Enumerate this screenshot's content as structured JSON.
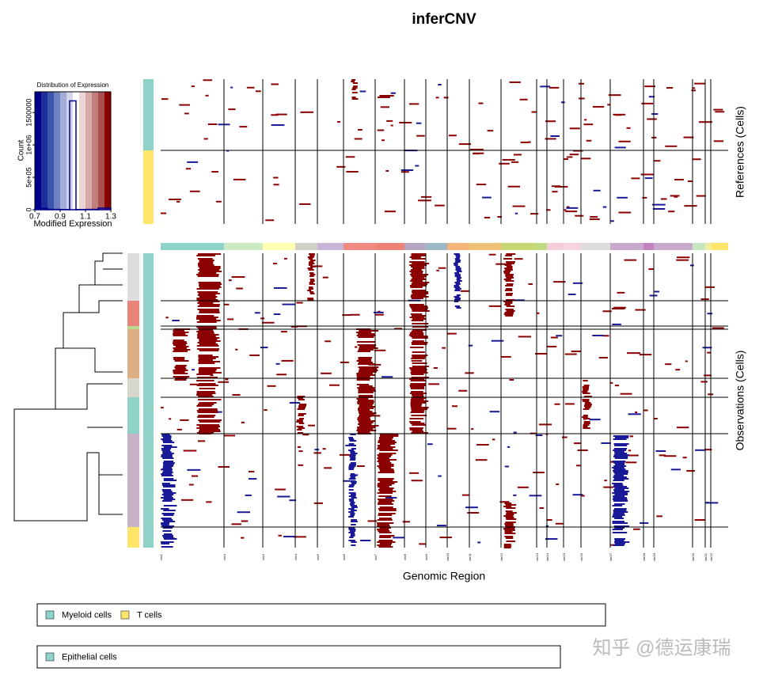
{
  "chart_data": {
    "type": "histogram",
    "title": "Distribution of Expression",
    "x_label": "Modified Expression",
    "y_label": "Count",
    "bins": [
      0.7,
      0.8,
      0.9,
      0.975,
      1.025,
      1.1,
      1.2,
      1.3
    ],
    "values": [
      20000,
      5000,
      3000,
      1680000,
      3000,
      5000,
      25000
    ],
    "color": "#00008b",
    "xlim": [
      0.7,
      1.3
    ],
    "xticks": [
      0.7,
      0.9,
      1.1,
      1.3
    ],
    "ylim": [
      0,
      1820000
    ],
    "yticks": [
      0,
      {
        "value": 500000,
        "label": "5e+05"
      },
      {
        "value": 1000000,
        "label": "1e+06"
      },
      1500000
    ],
    "scale_colors": [
      "#00008b",
      "#1c2e9a",
      "#3a55ab",
      "#6f82c0",
      "#a3acd6",
      "#d3d6ea",
      "#ffffff",
      "#ecd5d5",
      "#d8a9a9",
      "#c27d7d",
      "#ab4f4f",
      "#8b0000"
    ]
  },
  "page": {
    "title": "inferCNV",
    "references_label": "References (Cells)",
    "observations_label": "Observations (Cells)",
    "x_label": "Genomic Region",
    "chromosomes": [
      {
        "label": "chr1",
        "color": "#8dd3c7"
      },
      {
        "label": "chr2",
        "color": "#ccebc5"
      },
      {
        "label": "chr3",
        "color": "#ffffb3"
      },
      {
        "label": "chr4",
        "color": "#d2cfc6"
      },
      {
        "label": "chr5",
        "color": "#c6b5d6"
      },
      {
        "label": "chr6",
        "color": "#f08a80"
      },
      {
        "label": "chr7",
        "color": "#ee8275"
      },
      {
        "label": "chr8",
        "color": "#b5a6c2"
      },
      {
        "label": "chr9",
        "color": "#9fb8c7"
      },
      {
        "label": "chr10",
        "color": "#f2b479"
      },
      {
        "label": "chr11",
        "color": "#efc176"
      },
      {
        "label": "chr12",
        "color": "#c6d672"
      },
      {
        "label": "chr13",
        "color": "#bddb84"
      },
      {
        "label": "chr14",
        "color": "#f4cdd7"
      },
      {
        "label": "chr15",
        "color": "#f7d3e2"
      },
      {
        "label": "chr16",
        "color": "#dedad9"
      },
      {
        "label": "chr17",
        "color": "#c8a7cc"
      },
      {
        "label": "chr18",
        "color": "#c383c1"
      },
      {
        "label": "chr19",
        "color": "#c9a9cc"
      },
      {
        "label": "chr20",
        "color": "#c7e7c1"
      },
      {
        "label": "chr21",
        "color": "#f0eea2"
      },
      {
        "label": "chr22",
        "color": "#ffe66b"
      }
    ],
    "legends": [
      [
        {
          "label": "Myeloid cells",
          "color": "#8dd3c7"
        },
        {
          "label": "T cells",
          "color": "#ffe66b"
        }
      ],
      [
        {
          "label": "Epithelial cells",
          "color": "#8dd3c7"
        }
      ]
    ],
    "watermark": "知乎 @德运康瑞"
  }
}
